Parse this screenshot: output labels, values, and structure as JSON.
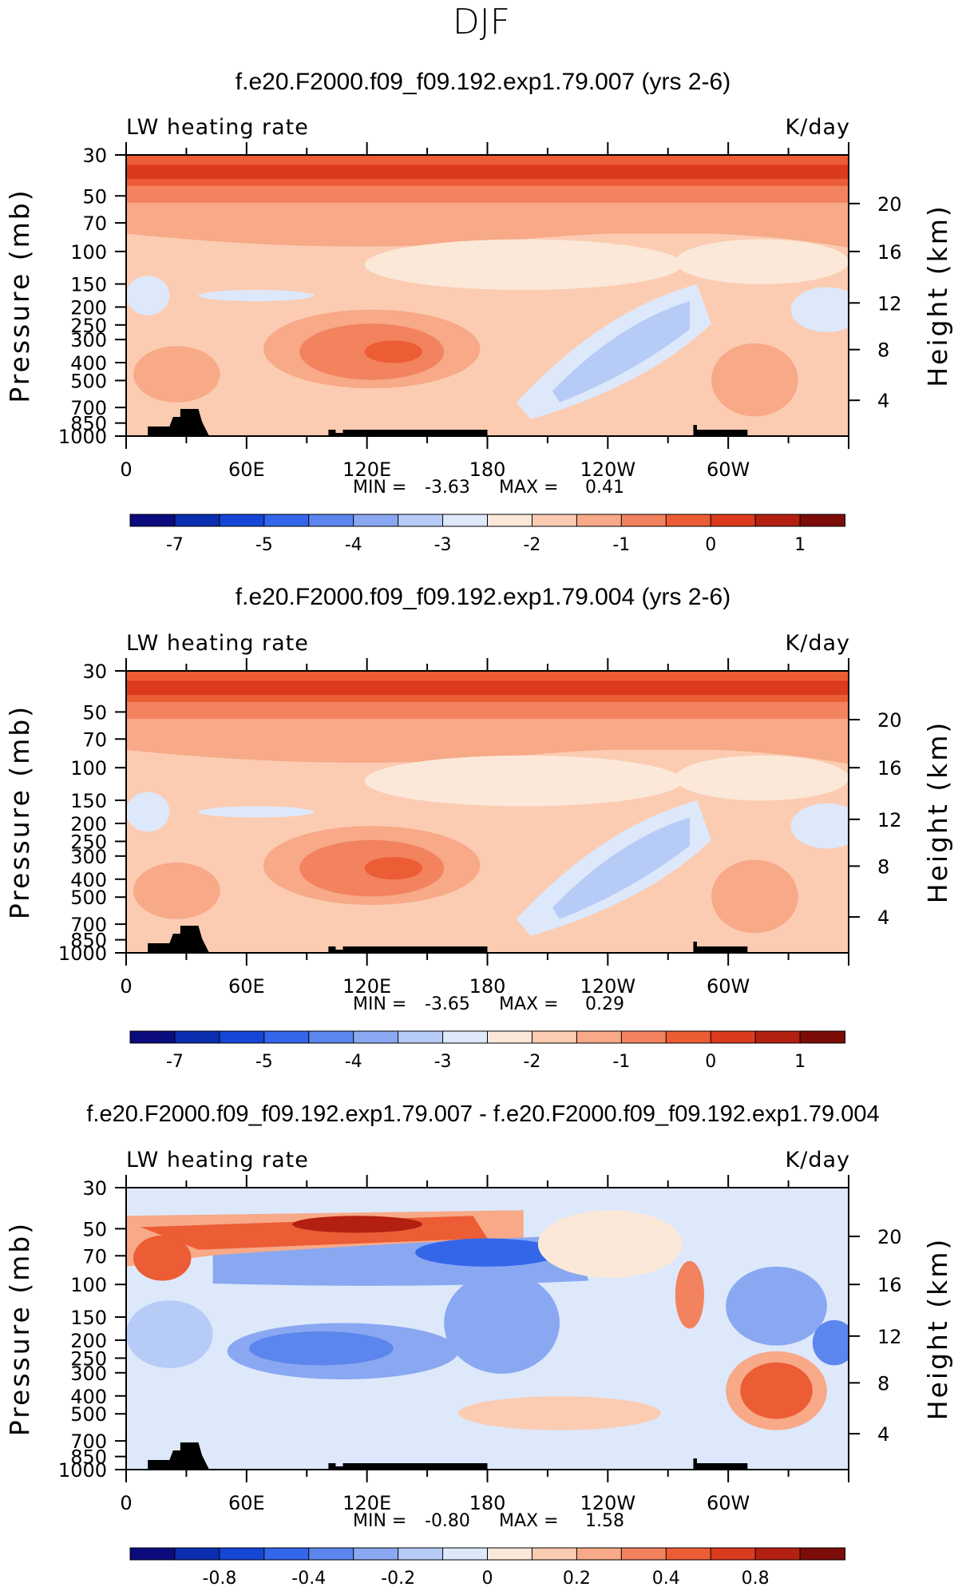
{
  "suptitle": "DJF",
  "panel_meta": {
    "left_string": "LW heating rate",
    "right_string": "K/day",
    "y_left_title": "Pressure (mb)",
    "y_right_title": "Height (km)",
    "min_label": "MIN =",
    "max_label": "MAX ="
  },
  "chart_data": [
    {
      "type": "heatmap",
      "title": "f.e20.F2000.f09_f09.192.exp1.79.007 (yrs 2-6)",
      "left_string": "LW heating rate",
      "right_string": "K/day",
      "xlabel": "",
      "ylabel": "Pressure (mb)",
      "y2label": "Height (km)",
      "x_ticks": [
        "0",
        "60E",
        "120E",
        "180",
        "120W",
        "60W"
      ],
      "y_ticks": [
        "30",
        "50",
        "70",
        "100",
        "150",
        "200",
        "250",
        "300",
        "400",
        "500",
        "700",
        "850",
        "1000"
      ],
      "y2_ticks": [
        "20",
        "16",
        "12",
        "8",
        "4"
      ],
      "min": "-3.63",
      "max": "0.41",
      "colorbar_labels": [
        "-7",
        "-5",
        "-4",
        "-3",
        "-2",
        "-1",
        "0",
        "1"
      ],
      "colors": [
        "#0b0b7e",
        "#0b2eb0",
        "#1547d6",
        "#3466ea",
        "#5c86ee",
        "#8aa8f1",
        "#b6cbf6",
        "#dde8fb",
        "#fce8d8",
        "#fbccb2",
        "#f7a988",
        "#f3825e",
        "#ec5c35",
        "#dc3a1c",
        "#b32012",
        "#7c0c08"
      ]
    },
    {
      "type": "heatmap",
      "title": "f.e20.F2000.f09_f09.192.exp1.79.004 (yrs 2-6)",
      "left_string": "LW heating rate",
      "right_string": "K/day",
      "xlabel": "",
      "ylabel": "Pressure (mb)",
      "y2label": "Height (km)",
      "x_ticks": [
        "0",
        "60E",
        "120E",
        "180",
        "120W",
        "60W"
      ],
      "y_ticks": [
        "30",
        "50",
        "70",
        "100",
        "150",
        "200",
        "250",
        "300",
        "400",
        "500",
        "700",
        "850",
        "1000"
      ],
      "y2_ticks": [
        "20",
        "16",
        "12",
        "8",
        "4"
      ],
      "min": "-3.65",
      "max": "0.29",
      "colorbar_labels": [
        "-7",
        "-5",
        "-4",
        "-3",
        "-2",
        "-1",
        "0",
        "1"
      ],
      "colors": [
        "#0b0b7e",
        "#0b2eb0",
        "#1547d6",
        "#3466ea",
        "#5c86ee",
        "#8aa8f1",
        "#b6cbf6",
        "#dde8fb",
        "#fce8d8",
        "#fbccb2",
        "#f7a988",
        "#f3825e",
        "#ec5c35",
        "#dc3a1c",
        "#b32012",
        "#7c0c08"
      ]
    },
    {
      "type": "heatmap",
      "title": "f.e20.F2000.f09_f09.192.exp1.79.007 - f.e20.F2000.f09_f09.192.exp1.79.004",
      "left_string": "LW heating rate",
      "right_string": "K/day",
      "xlabel": "",
      "ylabel": "Pressure (mb)",
      "y2label": "Height (km)",
      "x_ticks": [
        "0",
        "60E",
        "120E",
        "180",
        "120W",
        "60W"
      ],
      "y_ticks": [
        "30",
        "50",
        "70",
        "100",
        "150",
        "200",
        "250",
        "300",
        "400",
        "500",
        "700",
        "850",
        "1000"
      ],
      "y2_ticks": [
        "20",
        "16",
        "12",
        "8",
        "4"
      ],
      "min": "-0.80",
      "max": "1.58",
      "colorbar_labels": [
        "-0.8",
        "-0.4",
        "-0.2",
        "0",
        "0.2",
        "0.4",
        "0.8"
      ],
      "colors": [
        "#0b0b7e",
        "#0b2eb0",
        "#1547d6",
        "#3466ea",
        "#5c86ee",
        "#8aa8f1",
        "#b6cbf6",
        "#dde8fb",
        "#fce8d8",
        "#fbccb2",
        "#f7a988",
        "#f3825e",
        "#ec5c35",
        "#dc3a1c",
        "#b32012",
        "#7c0c08"
      ]
    }
  ]
}
